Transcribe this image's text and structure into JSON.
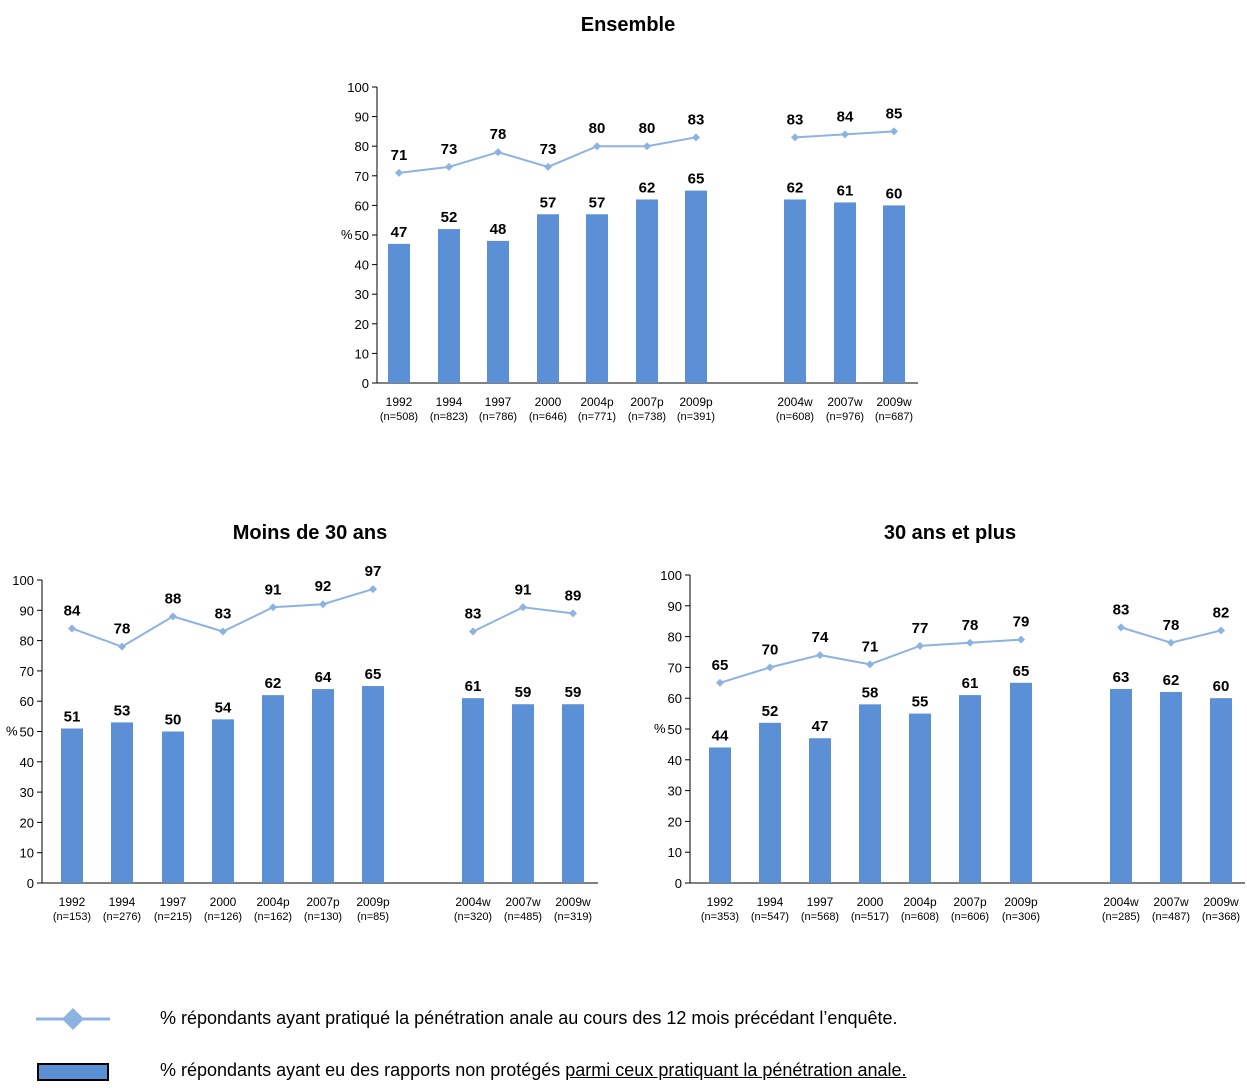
{
  "chart_data": [
    {
      "type": "bar",
      "title": "Ensemble",
      "ylabel": "%",
      "ylim": [
        0,
        100
      ],
      "yticks": [
        0,
        10,
        20,
        30,
        40,
        50,
        60,
        70,
        80,
        90,
        100
      ],
      "categories": [
        "1992",
        "1994",
        "1997",
        "2000",
        "2004p",
        "2007p",
        "2009p",
        "2004w",
        "2007w",
        "2009w"
      ],
      "sublabels": [
        "(n=508)",
        "(n=823)",
        "(n=786)",
        "(n=646)",
        "(n=771)",
        "(n=738)",
        "(n=391)",
        "(n=608)",
        "(n=976)",
        "(n=687)"
      ],
      "series": [
        {
          "type": "bar",
          "values": [
            47,
            52,
            48,
            57,
            57,
            62,
            65,
            62,
            61,
            60
          ]
        },
        {
          "type": "line",
          "values": [
            71,
            73,
            78,
            73,
            80,
            80,
            83,
            83,
            84,
            85
          ]
        }
      ]
    },
    {
      "type": "bar",
      "title": "Moins de 30 ans",
      "ylabel": "%",
      "ylim": [
        0,
        100
      ],
      "yticks": [
        0,
        10,
        20,
        30,
        40,
        50,
        60,
        70,
        80,
        90,
        100
      ],
      "categories": [
        "1992",
        "1994",
        "1997",
        "2000",
        "2004p",
        "2007p",
        "2009p",
        "2004w",
        "2007w",
        "2009w"
      ],
      "sublabels": [
        "(n=153)",
        "(n=276)",
        "(n=215)",
        "(n=126)",
        "(n=162)",
        "(n=130)",
        "(n=85)",
        "(n=320)",
        "(n=485)",
        "(n=319)"
      ],
      "series": [
        {
          "type": "bar",
          "values": [
            51,
            53,
            50,
            54,
            62,
            64,
            65,
            61,
            59,
            59
          ]
        },
        {
          "type": "line",
          "values": [
            84,
            78,
            88,
            83,
            91,
            92,
            97,
            83,
            91,
            89
          ]
        }
      ]
    },
    {
      "type": "bar",
      "title": "30 ans et plus",
      "ylabel": "%",
      "ylim": [
        0,
        100
      ],
      "yticks": [
        0,
        10,
        20,
        30,
        40,
        50,
        60,
        70,
        80,
        90,
        100
      ],
      "categories": [
        "1992",
        "1994",
        "1997",
        "2000",
        "2004p",
        "2007p",
        "2009p",
        "2004w",
        "2007w",
        "2009w"
      ],
      "sublabels": [
        "(n=353)",
        "(n=547)",
        "(n=568)",
        "(n=517)",
        "(n=608)",
        "(n=606)",
        "(n=306)",
        "(n=285)",
        "(n=487)",
        "(n=368)"
      ],
      "series": [
        {
          "type": "bar",
          "values": [
            44,
            52,
            47,
            58,
            55,
            61,
            65,
            63,
            62,
            60
          ]
        },
        {
          "type": "line",
          "values": [
            65,
            70,
            74,
            71,
            77,
            78,
            79,
            83,
            78,
            82
          ]
        }
      ]
    }
  ],
  "legend": {
    "line_label": "% répondants ayant pratiqué la pénétration anale au cours des 12 mois précédant l’enquête.",
    "bar_label_prefix": "% répondants ayant eu des rapports non protégés ",
    "bar_label_underlined": "parmi ceux pratiquant la pénétration anale."
  },
  "colors": {
    "bar": "#5B8FD6",
    "line": "#8DB3E2",
    "marker": "#8DB3E2",
    "axis": "#000000"
  }
}
